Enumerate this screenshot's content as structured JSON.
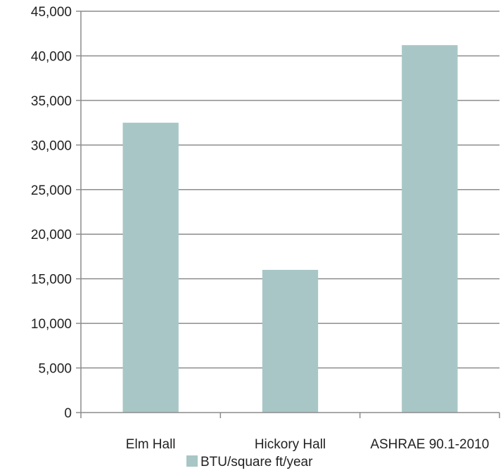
{
  "chart_data": {
    "type": "bar",
    "title": "",
    "xlabel": "",
    "ylabel": "",
    "categories": [
      "Elm Hall",
      "Hickory Hall",
      "ASHRAE 90.1-2010"
    ],
    "series": [
      {
        "name": "BTU/square ft/year",
        "values": [
          32500,
          16000,
          41200
        ]
      }
    ],
    "ylim": [
      0,
      45000
    ],
    "yticks": [
      0,
      5000,
      10000,
      15000,
      20000,
      25000,
      30000,
      35000,
      40000,
      45000
    ],
    "ytick_labels": [
      "0",
      "5,000",
      "10,000",
      "15,000",
      "20,000",
      "25,000",
      "30,000",
      "35,000",
      "40,000",
      "45,000"
    ],
    "grid": true,
    "legend": "bottom",
    "bar_color": "#a8c6c6",
    "grid_color": "#8c8c8c"
  }
}
